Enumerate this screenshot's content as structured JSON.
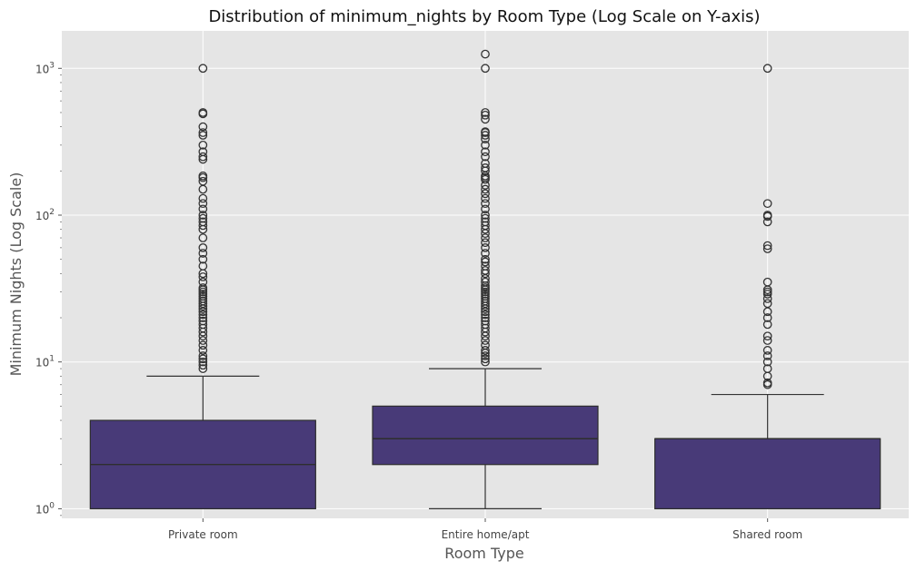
{
  "chart_data": {
    "type": "box",
    "title": "Distribution of minimum_nights by Room Type (Log Scale on Y-axis)",
    "xlabel": "Room Type",
    "ylabel": "Minimum Nights (Log Scale)",
    "y_scale": "log",
    "ylim": [
      0.86,
      1800
    ],
    "y_ticks": [
      {
        "base": "10",
        "exp": "0",
        "value": 1
      },
      {
        "base": "10",
        "exp": "1",
        "value": 10
      },
      {
        "base": "10",
        "exp": "2",
        "value": 100
      },
      {
        "base": "10",
        "exp": "3",
        "value": 1000
      }
    ],
    "grid": true,
    "categories": [
      "Private room",
      "Entire home/apt",
      "Shared room"
    ],
    "boxes": [
      {
        "category": "Private room",
        "whisker_low": 1,
        "q1": 1,
        "median": 2,
        "q3": 4,
        "whisker_high": 8,
        "outliers": [
          9,
          9.5,
          10,
          10.5,
          11,
          12,
          13,
          14,
          15,
          16,
          17,
          18,
          19,
          20,
          21,
          22,
          23,
          24,
          25,
          26,
          27,
          28,
          29,
          30,
          31,
          32,
          35,
          38,
          40,
          45,
          50,
          55,
          60,
          70,
          80,
          85,
          90,
          95,
          100,
          110,
          120,
          130,
          150,
          170,
          180,
          185,
          240,
          250,
          270,
          300,
          350,
          365,
          400,
          490,
          500,
          1000
        ]
      },
      {
        "category": "Entire home/apt",
        "whisker_low": 1,
        "q1": 2,
        "median": 3,
        "q3": 5,
        "whisker_high": 9,
        "outliers": [
          10,
          10.5,
          11,
          11.5,
          12,
          13,
          14,
          15,
          16,
          17,
          18,
          19,
          20,
          21,
          22,
          23,
          24,
          25,
          26,
          27,
          28,
          29,
          30,
          31,
          32,
          33,
          35,
          37,
          40,
          42,
          45,
          48,
          50,
          55,
          60,
          65,
          70,
          75,
          80,
          85,
          90,
          95,
          100,
          110,
          120,
          130,
          140,
          150,
          160,
          175,
          180,
          185,
          200,
          210,
          225,
          250,
          270,
          300,
          330,
          350,
          365,
          370,
          450,
          480,
          500,
          1000,
          1250
        ]
      },
      {
        "category": "Shared room",
        "whisker_low": 1,
        "q1": 1,
        "median": 3,
        "q3": 3,
        "whisker_high": 6,
        "outliers": [
          7,
          7.2,
          8,
          9,
          10,
          11,
          12,
          14,
          15,
          18,
          20,
          22,
          25,
          27,
          29,
          30,
          31,
          35,
          59,
          62,
          90,
          98,
          100,
          120,
          1000
        ]
      }
    ],
    "colors": {
      "box_fill": "#483A78",
      "box_edge": "#2E2E2E",
      "whisker": "#333333",
      "flier_edge": "#333333",
      "plot_background": "#E5E5E5",
      "grid": "#FFFFFF"
    }
  }
}
